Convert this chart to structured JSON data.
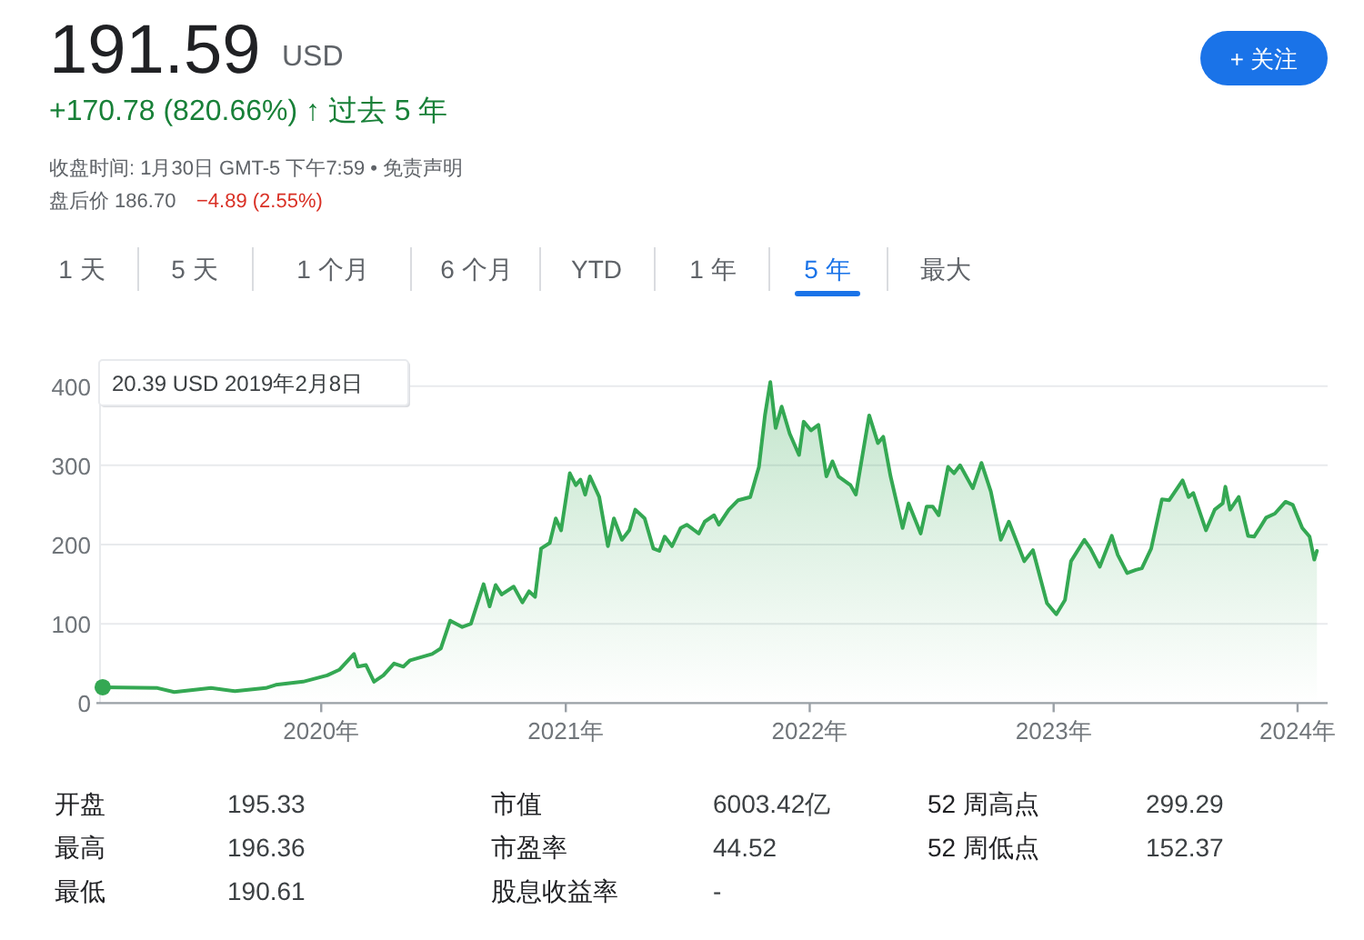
{
  "chart_data": {
    "type": "area",
    "title": "191.59",
    "subtitle": "+170.78 (820.66%) ↑ 过去 5 年",
    "annotations": [
      "USD",
      "收盘时间: 1月30日 GMT-5 下午7:59 • 免责声明",
      "盘后价 186.70",
      "−4.89 (2.55%)",
      "+ 关注",
      "1 天",
      "5 天",
      "1 个月",
      "6 个月",
      "YTD",
      "1 年",
      "5 年",
      "最大",
      "开盘",
      "195.33",
      "市值",
      "6003.42亿",
      "52 周高点",
      "299.29",
      "最高",
      "196.36",
      "市盈率",
      "44.52",
      "52 周低点",
      "152.37",
      "最低",
      "190.61",
      "股息收益率",
      "-",
      "20.39 USD  2019年2月8日"
    ],
    "series": [
      {
        "color": "#34a853",
        "x": [
          "2019-02-08",
          "2019-05-01",
          "2019-05-26",
          "2019-07-20",
          "2019-08-25",
          "2019-10-10",
          "2019-10-25",
          "2019-12-05",
          "2020-01-10",
          "2020-01-28",
          "2020-02-19",
          "2020-02-25",
          "2020-03-08",
          "2020-03-20",
          "2020-04-03",
          "2020-04-19",
          "2020-05-03",
          "2020-05-13",
          "2020-06-15",
          "2020-06-28",
          "2020-07-12",
          "2020-07-30",
          "2020-08-12",
          "2020-08-31",
          "2020-09-09",
          "2020-09-18",
          "2020-09-27",
          "2020-10-15",
          "2020-10-28",
          "2020-11-07",
          "2020-11-16",
          "2020-11-25",
          "2020-12-08",
          "2020-12-17",
          "2020-12-25",
          "2021-01-07",
          "2021-01-16",
          "2021-01-23",
          "2021-01-30",
          "2021-02-06",
          "2021-02-20",
          "2021-03-05",
          "2021-03-14",
          "2021-03-26",
          "2021-04-06",
          "2021-04-15",
          "2021-04-29",
          "2021-05-12",
          "2021-05-21",
          "2021-05-29",
          "2021-06-09",
          "2021-06-22",
          "2021-07-01",
          "2021-07-19",
          "2021-07-28",
          "2021-08-11",
          "2021-08-18",
          "2021-09-02",
          "2021-09-16",
          "2021-10-04",
          "2021-10-17",
          "2021-10-26",
          "2021-11-03",
          "2021-11-11",
          "2021-11-20",
          "2021-12-02",
          "2021-12-16",
          "2021-12-23",
          "2022-01-03",
          "2022-01-14",
          "2022-01-26",
          "2022-02-04",
          "2022-02-13",
          "2022-03-03",
          "2022-03-11",
          "2022-03-31",
          "2022-04-13",
          "2022-04-21",
          "2022-05-02",
          "2022-05-20",
          "2022-05-29",
          "2022-06-16",
          "2022-06-25",
          "2022-07-04",
          "2022-07-13",
          "2022-07-27",
          "2022-08-05",
          "2022-08-14",
          "2022-09-02",
          "2022-09-15",
          "2022-09-29",
          "2022-10-14",
          "2022-10-26",
          "2022-11-18",
          "2022-12-01",
          "2022-12-22",
          "2023-01-05",
          "2023-01-18",
          "2023-01-27",
          "2023-02-16",
          "2023-02-25",
          "2023-03-11",
          "2023-03-29",
          "2023-04-07",
          "2023-04-21",
          "2023-05-04",
          "2023-05-13",
          "2023-05-27",
          "2023-06-12",
          "2023-06-23",
          "2023-07-13",
          "2023-07-22",
          "2023-07-29",
          "2023-08-17",
          "2023-08-30",
          "2023-09-11",
          "2023-09-15",
          "2023-09-22",
          "2023-10-05",
          "2023-10-19",
          "2023-10-28",
          "2023-11-04",
          "2023-11-15",
          "2023-11-28",
          "2023-12-14",
          "2023-12-25",
          "2024-01-08",
          "2024-01-19",
          "2024-01-26",
          "2024-01-30"
        ],
        "values": [
          20,
          19,
          14,
          19,
          15,
          19,
          23,
          27,
          35,
          42,
          62,
          46,
          48,
          27,
          35,
          50,
          46,
          54,
          62,
          69,
          104,
          96,
          100,
          150,
          122,
          149,
          137,
          147,
          127,
          141,
          134,
          195,
          202,
          233,
          218,
          290,
          275,
          282,
          263,
          286,
          260,
          198,
          233,
          206,
          218,
          244,
          233,
          195,
          192,
          210,
          198,
          221,
          225,
          214,
          229,
          237,
          225,
          244,
          256,
          260,
          298,
          363,
          405,
          347,
          374,
          340,
          313,
          355,
          344,
          351,
          286,
          305,
          286,
          275,
          263,
          363,
          328,
          336,
          286,
          221,
          252,
          214,
          248,
          248,
          237,
          298,
          290,
          300,
          271,
          303,
          267,
          206,
          229,
          179,
          193,
          126,
          112,
          130,
          179,
          206,
          195,
          172,
          211,
          187,
          164,
          168,
          170,
          195,
          257,
          256,
          281,
          260,
          265,
          218,
          244,
          252,
          273,
          244,
          260,
          211,
          210,
          219,
          234,
          239,
          254,
          250,
          221,
          210,
          181,
          192
        ]
      }
    ],
    "xlim": [
      "2019-02-04",
      "2024-02-15"
    ],
    "xticks": [
      {
        "value": "2020-01-01",
        "label": "2020年"
      },
      {
        "value": "2021-01-01",
        "label": "2021年"
      },
      {
        "value": "2022-01-01",
        "label": "2022年"
      },
      {
        "value": "2023-01-01",
        "label": "2023年"
      },
      {
        "value": "2024-01-01",
        "label": "2024年"
      }
    ],
    "ylim": [
      0,
      420
    ],
    "yticks": [
      0,
      100,
      200,
      300,
      400
    ],
    "grid": "y"
  }
}
